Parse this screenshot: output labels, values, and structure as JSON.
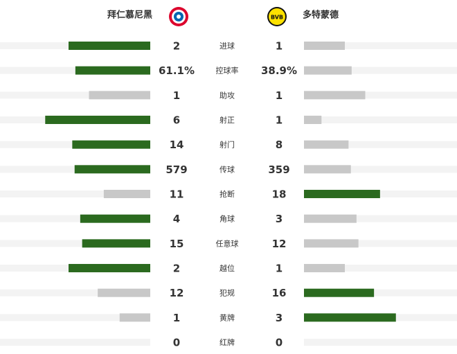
{
  "teams": {
    "home": "拜仁慕尼黑",
    "away": "多特蒙德"
  },
  "colors": {
    "leading": "#2b6a1f",
    "trailing": "#c8c8c8",
    "track": "#f3f3f3"
  },
  "stats": [
    {
      "name": "进球",
      "home": 2,
      "away": 1
    },
    {
      "name": "控球率",
      "home": 61.1,
      "away": 38.9,
      "value_labels": {
        "home": "61.1%",
        "away": "38.9%"
      }
    },
    {
      "name": "助攻",
      "home": 1,
      "away": 1
    },
    {
      "name": "射正",
      "home": 6,
      "away": 1
    },
    {
      "name": "射门",
      "home": 14,
      "away": 8
    },
    {
      "name": "传球",
      "home": 579,
      "away": 359
    },
    {
      "name": "抢断",
      "home": 11,
      "away": 18
    },
    {
      "name": "角球",
      "home": 4,
      "away": 3
    },
    {
      "name": "任意球",
      "home": 15,
      "away": 12
    },
    {
      "name": "越位",
      "home": 2,
      "away": 1
    },
    {
      "name": "犯规",
      "home": 12,
      "away": 16
    },
    {
      "name": "黄牌",
      "home": 1,
      "away": 3
    },
    {
      "name": "红牌",
      "home": 0,
      "away": 0
    }
  ]
}
